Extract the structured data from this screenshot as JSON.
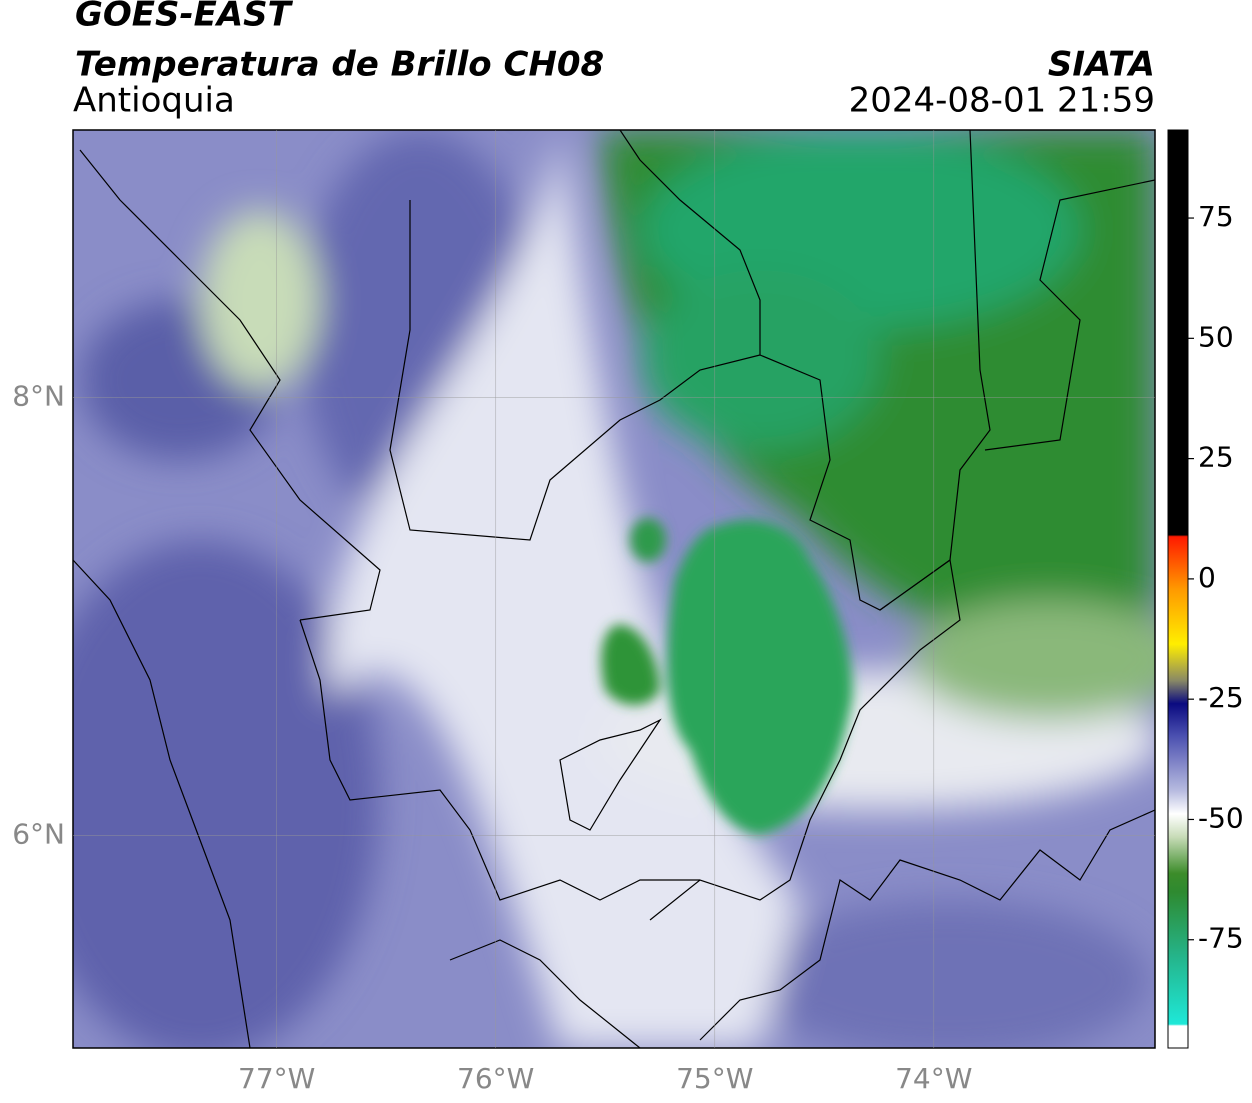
{
  "header": {
    "title": "GOES-EAST",
    "subtitle": "Temperatura de Brillo CH08",
    "region": "Antioquia",
    "source": "SIATA",
    "datetime": "2024-08-01 21:59"
  },
  "map": {
    "xlim": [
      -77.93,
      -72.99
    ],
    "ylim": [
      5.03,
      9.22
    ],
    "xticks": [
      {
        "value": -77,
        "label": "77°W"
      },
      {
        "value": -76,
        "label": "76°W"
      },
      {
        "value": -75,
        "label": "75°W"
      },
      {
        "value": -74,
        "label": "74°W"
      }
    ],
    "yticks": [
      {
        "value": 8,
        "label": "8°N"
      },
      {
        "value": 6,
        "label": "6°N"
      }
    ]
  },
  "colorbar": {
    "lim": [
      -97.5,
      93.3
    ],
    "ticks": [
      75,
      50,
      25,
      0,
      -25,
      -50,
      -75
    ]
  }
}
